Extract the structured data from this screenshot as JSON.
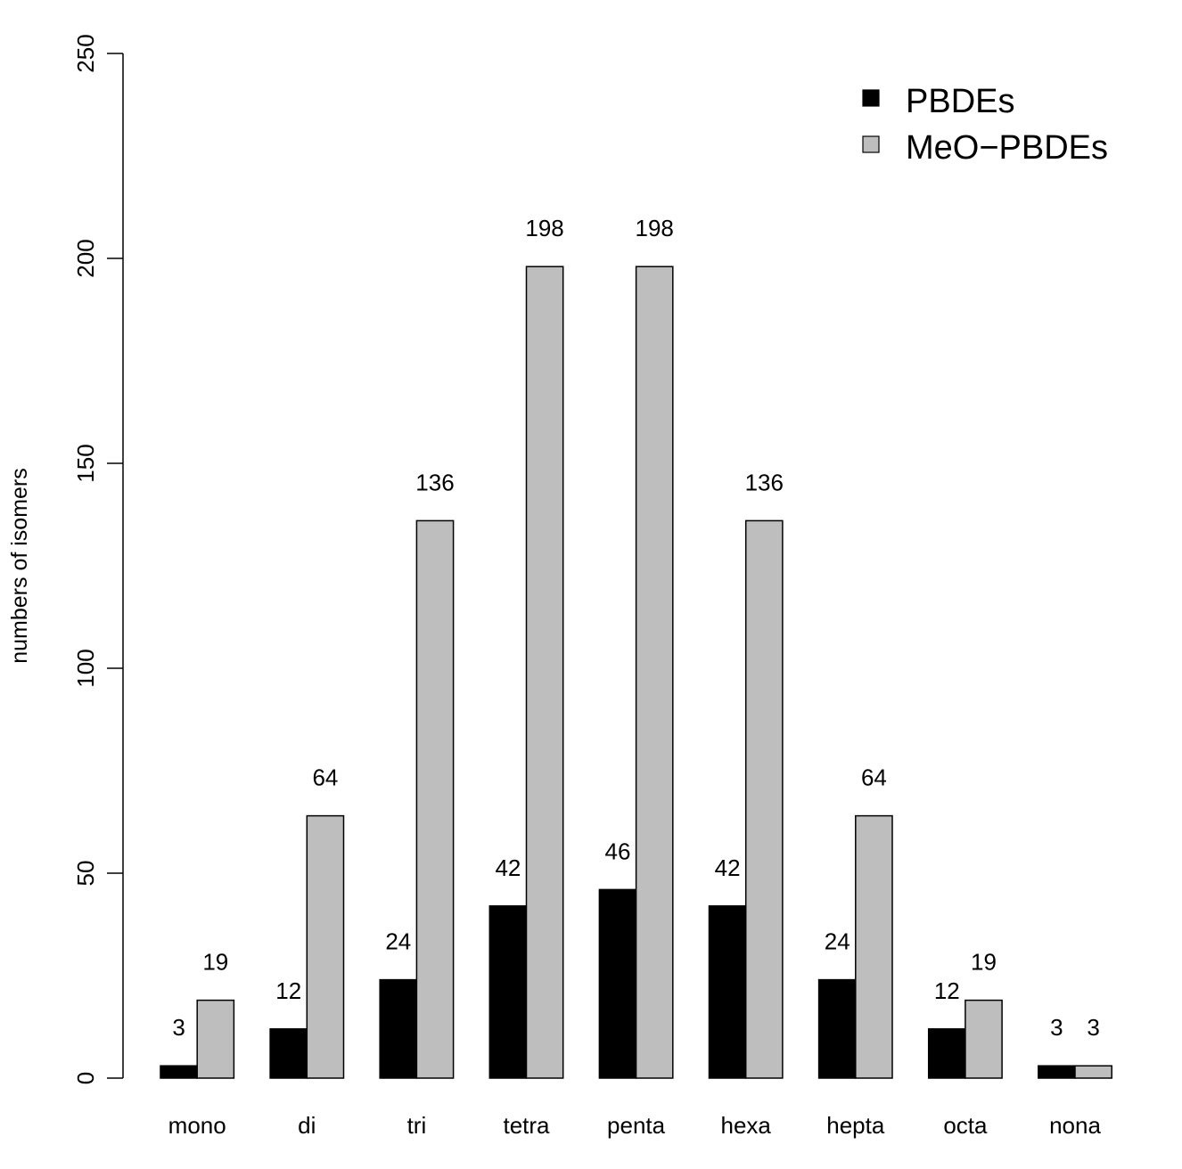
{
  "chart_data": {
    "type": "bar",
    "ylabel": "numbers of isomers",
    "xlabel": "",
    "ylim": [
      0,
      250
    ],
    "yticks": [
      0,
      50,
      100,
      150,
      200,
      250
    ],
    "categories": [
      "mono",
      "di",
      "tri",
      "tetra",
      "penta",
      "hexa",
      "hepta",
      "octa",
      "nona"
    ],
    "series": [
      {
        "name": "PBDEs",
        "color": "#000000",
        "values": [
          3,
          12,
          24,
          42,
          46,
          42,
          24,
          12,
          3
        ]
      },
      {
        "name": "MeO−PBDEs",
        "color": "#bebebe",
        "values": [
          19,
          64,
          136,
          198,
          198,
          136,
          64,
          19,
          3
        ]
      }
    ],
    "legend_position": "top-right",
    "grid": false,
    "data_labels": true
  }
}
